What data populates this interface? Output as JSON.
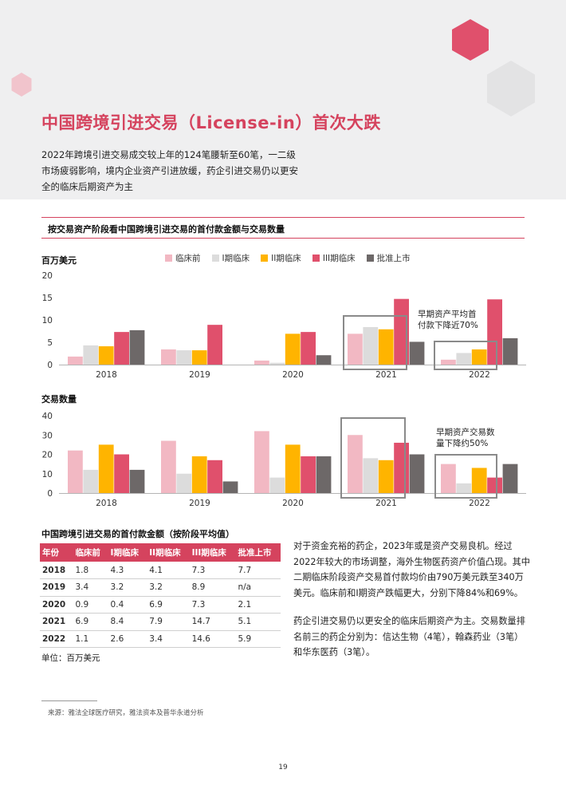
{
  "page": {
    "title": "中国跨境引进交易（License-in）首次大跌",
    "intro": "2022年跨境引进交易成交较上年的124笔腰斩至60笔，一二级市场疲弱影响，境内企业资产引进放缓，药企引进交易仍以更安全的临床后期资产为主",
    "section_title": "按交易资产阶段看中国跨境引进交易的首付款金额与交易数量",
    "page_number": "19",
    "source": "来源：雅法全球医疗研究，雅法资本及普华永道分析"
  },
  "legend": [
    {
      "label": "临床前",
      "color": "#f2b8c3"
    },
    {
      "label": "I期临床",
      "color": "#dcdcdc"
    },
    {
      "label": "II期临床",
      "color": "#ffb400"
    },
    {
      "label": "III期临床",
      "color": "#e0506c"
    },
    {
      "label": "批准上市",
      "color": "#6d6868"
    }
  ],
  "chart_data": [
    {
      "type": "bar",
      "title": "",
      "ylabel": "百万美元",
      "ylim": [
        0,
        20
      ],
      "yticks": [
        0,
        5,
        10,
        15,
        20
      ],
      "categories": [
        "2018",
        "2019",
        "2020",
        "2021",
        "2022"
      ],
      "series": [
        {
          "name": "临床前",
          "values": [
            1.8,
            3.4,
            0.9,
            6.9,
            1.1
          ]
        },
        {
          "name": "I期临床",
          "values": [
            4.3,
            3.2,
            0.4,
            8.4,
            2.6
          ]
        },
        {
          "name": "II期临床",
          "values": [
            4.1,
            3.2,
            6.9,
            7.9,
            3.4
          ]
        },
        {
          "name": "III期临床",
          "values": [
            7.3,
            8.9,
            7.3,
            14.7,
            14.6
          ]
        },
        {
          "name": "批准上市",
          "values": [
            7.7,
            null,
            2.1,
            5.1,
            5.9
          ]
        }
      ],
      "annotation": "早期资产平均首付款下降近70%"
    },
    {
      "type": "bar",
      "title": "",
      "ylabel": "交易数量",
      "ylim": [
        0,
        40
      ],
      "yticks": [
        0,
        10,
        20,
        30,
        40
      ],
      "categories": [
        "2018",
        "2019",
        "2020",
        "2021",
        "2022"
      ],
      "series": [
        {
          "name": "临床前",
          "values": [
            22,
            27,
            32,
            30,
            15
          ]
        },
        {
          "name": "I期临床",
          "values": [
            12,
            10,
            8,
            18,
            5
          ]
        },
        {
          "name": "II期临床",
          "values": [
            25,
            19,
            25,
            17,
            13
          ]
        },
        {
          "name": "III期临床",
          "values": [
            20,
            17,
            19,
            26,
            8
          ]
        },
        {
          "name": "批准上市",
          "values": [
            12,
            6,
            19,
            20,
            15
          ]
        }
      ],
      "annotation": "早期资产交易数量下降约50%"
    }
  ],
  "annotations": {
    "chart1": [
      "早期资产平均首",
      "付款下降近70%"
    ],
    "chart2": [
      "早期资产交易数",
      "量下降约50%"
    ]
  },
  "table": {
    "title": "中国跨境引进交易的首付款金额（按阶段平均值）",
    "headers": [
      "年份",
      "临床前",
      "I期临床",
      "II期临床",
      "III期临床",
      "批准上市"
    ],
    "rows": [
      [
        "2018",
        "1.8",
        "4.3",
        "4.1",
        "7.3",
        "7.7"
      ],
      [
        "2019",
        "3.4",
        "3.2",
        "3.2",
        "8.9",
        "n/a"
      ],
      [
        "2020",
        "0.9",
        "0.4",
        "6.9",
        "7.3",
        "2.1"
      ],
      [
        "2021",
        "6.9",
        "8.4",
        "7.9",
        "14.7",
        "5.1"
      ],
      [
        "2022",
        "1.1",
        "2.6",
        "3.4",
        "14.6",
        "5.9"
      ]
    ],
    "unit": "单位：百万美元"
  },
  "body": {
    "para1": "对于资金充裕的药企，2023年或是资产交易良机。经过2022年较大的市场调整，海外生物医药资产价值凸现。其中二期临床阶段资产交易首付款均价由790万美元跌至340万美元。临床前和I期资产跌幅更大，分别下降84%和69%。",
    "para2": "药企引进交易仍以更安全的临床后期资产为主。交易数量排名前三的药企分别为：信达生物（4笔），翰森药业（3笔）和华东医药（3笔）。"
  },
  "colors": {
    "accent": "#d5435e",
    "band": "#efeff0",
    "hex_pink": "#e0506c",
    "hex_light_pink": "#f1c4cc",
    "hex_grey": "#e3e3e4",
    "box": "#8a8a8a"
  }
}
